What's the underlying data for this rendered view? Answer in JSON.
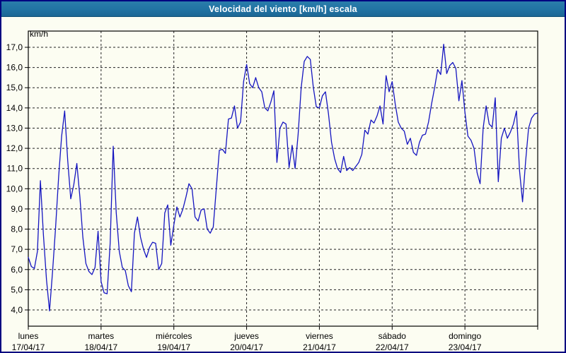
{
  "window": {
    "title": "Velocidad del viento [km/h] escala"
  },
  "chart_data": {
    "type": "line",
    "title": "Velocidad del viento [km/h] escala",
    "ylabel": "km/h",
    "xlabel": "",
    "ylim": [
      3.2,
      17.8
    ],
    "grid": "dashed",
    "legend_position": "none",
    "line_color": "#1515c0",
    "y_ticks": [
      {
        "value": 17,
        "label": "17,0"
      },
      {
        "value": 16,
        "label": "16,0"
      },
      {
        "value": 15,
        "label": "15,0"
      },
      {
        "value": 14,
        "label": "14,0"
      },
      {
        "value": 13,
        "label": "13,0"
      },
      {
        "value": 12,
        "label": "12,0"
      },
      {
        "value": 11,
        "label": "11,0"
      },
      {
        "value": 10,
        "label": "10,0"
      },
      {
        "value": 9,
        "label": "9,0"
      },
      {
        "value": 8,
        "label": "8,0"
      },
      {
        "value": 7,
        "label": "7,0"
      },
      {
        "value": 6,
        "label": "6,0"
      },
      {
        "value": 5,
        "label": "5,0"
      },
      {
        "value": 4,
        "label": "4,0"
      }
    ],
    "days": [
      {
        "name": "lunes",
        "date": "17/04/17"
      },
      {
        "name": "martes",
        "date": "18/04/17"
      },
      {
        "name": "miércoles",
        "date": "19/04/17"
      },
      {
        "name": "jueves",
        "date": "20/04/17"
      },
      {
        "name": "viernes",
        "date": "21/04/17"
      },
      {
        "name": "sábado",
        "date": "22/04/17"
      },
      {
        "name": "domingo",
        "date": "23/04/17"
      }
    ],
    "samples_per_day": 24,
    "series": [
      {
        "name": "Velocidad del viento",
        "unit": "km/h",
        "values": [
          6.6,
          6.15,
          6.05,
          6.9,
          10.4,
          7.7,
          5.5,
          3.95,
          5.9,
          8.1,
          10.6,
          12.6,
          13.85,
          11.4,
          9.5,
          10.2,
          11.25,
          9.6,
          7.6,
          6.3,
          5.9,
          5.75,
          6.1,
          7.9,
          5.4,
          4.85,
          4.8,
          7.3,
          12.1,
          8.8,
          6.9,
          6.1,
          5.95,
          5.2,
          4.9,
          7.8,
          8.6,
          7.6,
          7.0,
          6.6,
          7.1,
          7.35,
          7.3,
          6.0,
          6.3,
          8.8,
          9.2,
          7.2,
          8.2,
          9.1,
          8.6,
          9.0,
          9.6,
          10.25,
          10.0,
          8.6,
          8.4,
          8.95,
          9.0,
          8.0,
          7.8,
          8.1,
          10.0,
          11.9,
          11.95,
          11.75,
          13.45,
          13.5,
          14.1,
          13.0,
          13.3,
          15.3,
          16.15,
          15.2,
          15.0,
          15.5,
          15.0,
          14.8,
          14.0,
          13.85,
          14.3,
          14.85,
          11.3,
          13.0,
          13.3,
          13.2,
          11.05,
          12.15,
          11.0,
          12.7,
          15.0,
          16.3,
          16.55,
          16.4,
          15.0,
          14.05,
          14.0,
          14.6,
          14.8,
          13.7,
          12.3,
          11.5,
          11.0,
          10.8,
          11.6,
          10.9,
          11.05,
          10.9,
          11.1,
          11.3,
          11.7,
          12.9,
          12.7,
          13.4,
          13.25,
          13.6,
          14.1,
          13.2,
          15.6,
          14.8,
          15.3,
          14.2,
          13.3,
          13.0,
          12.85,
          12.2,
          12.5,
          11.8,
          11.65,
          12.3,
          12.65,
          12.7,
          13.3,
          14.2,
          15.0,
          15.9,
          15.65,
          17.15,
          15.7,
          16.1,
          16.25,
          15.95,
          14.35,
          15.35,
          13.8,
          12.6,
          12.4,
          12.0,
          10.8,
          10.25,
          13.0,
          14.1,
          13.2,
          13.05,
          14.5,
          10.35,
          12.5,
          13.0,
          12.5,
          12.8,
          13.2,
          13.85,
          10.9,
          9.35,
          11.35,
          13.0,
          13.5,
          13.7,
          13.75
        ]
      }
    ]
  },
  "colors": {
    "window_border": "#000080",
    "titlebar_bg": "#2173a3",
    "titlebar_text": "#ffffff",
    "panel_bg": "#fcfdf2",
    "grid": "#222222",
    "axis": "#000000",
    "series_line": "#1515c0"
  }
}
